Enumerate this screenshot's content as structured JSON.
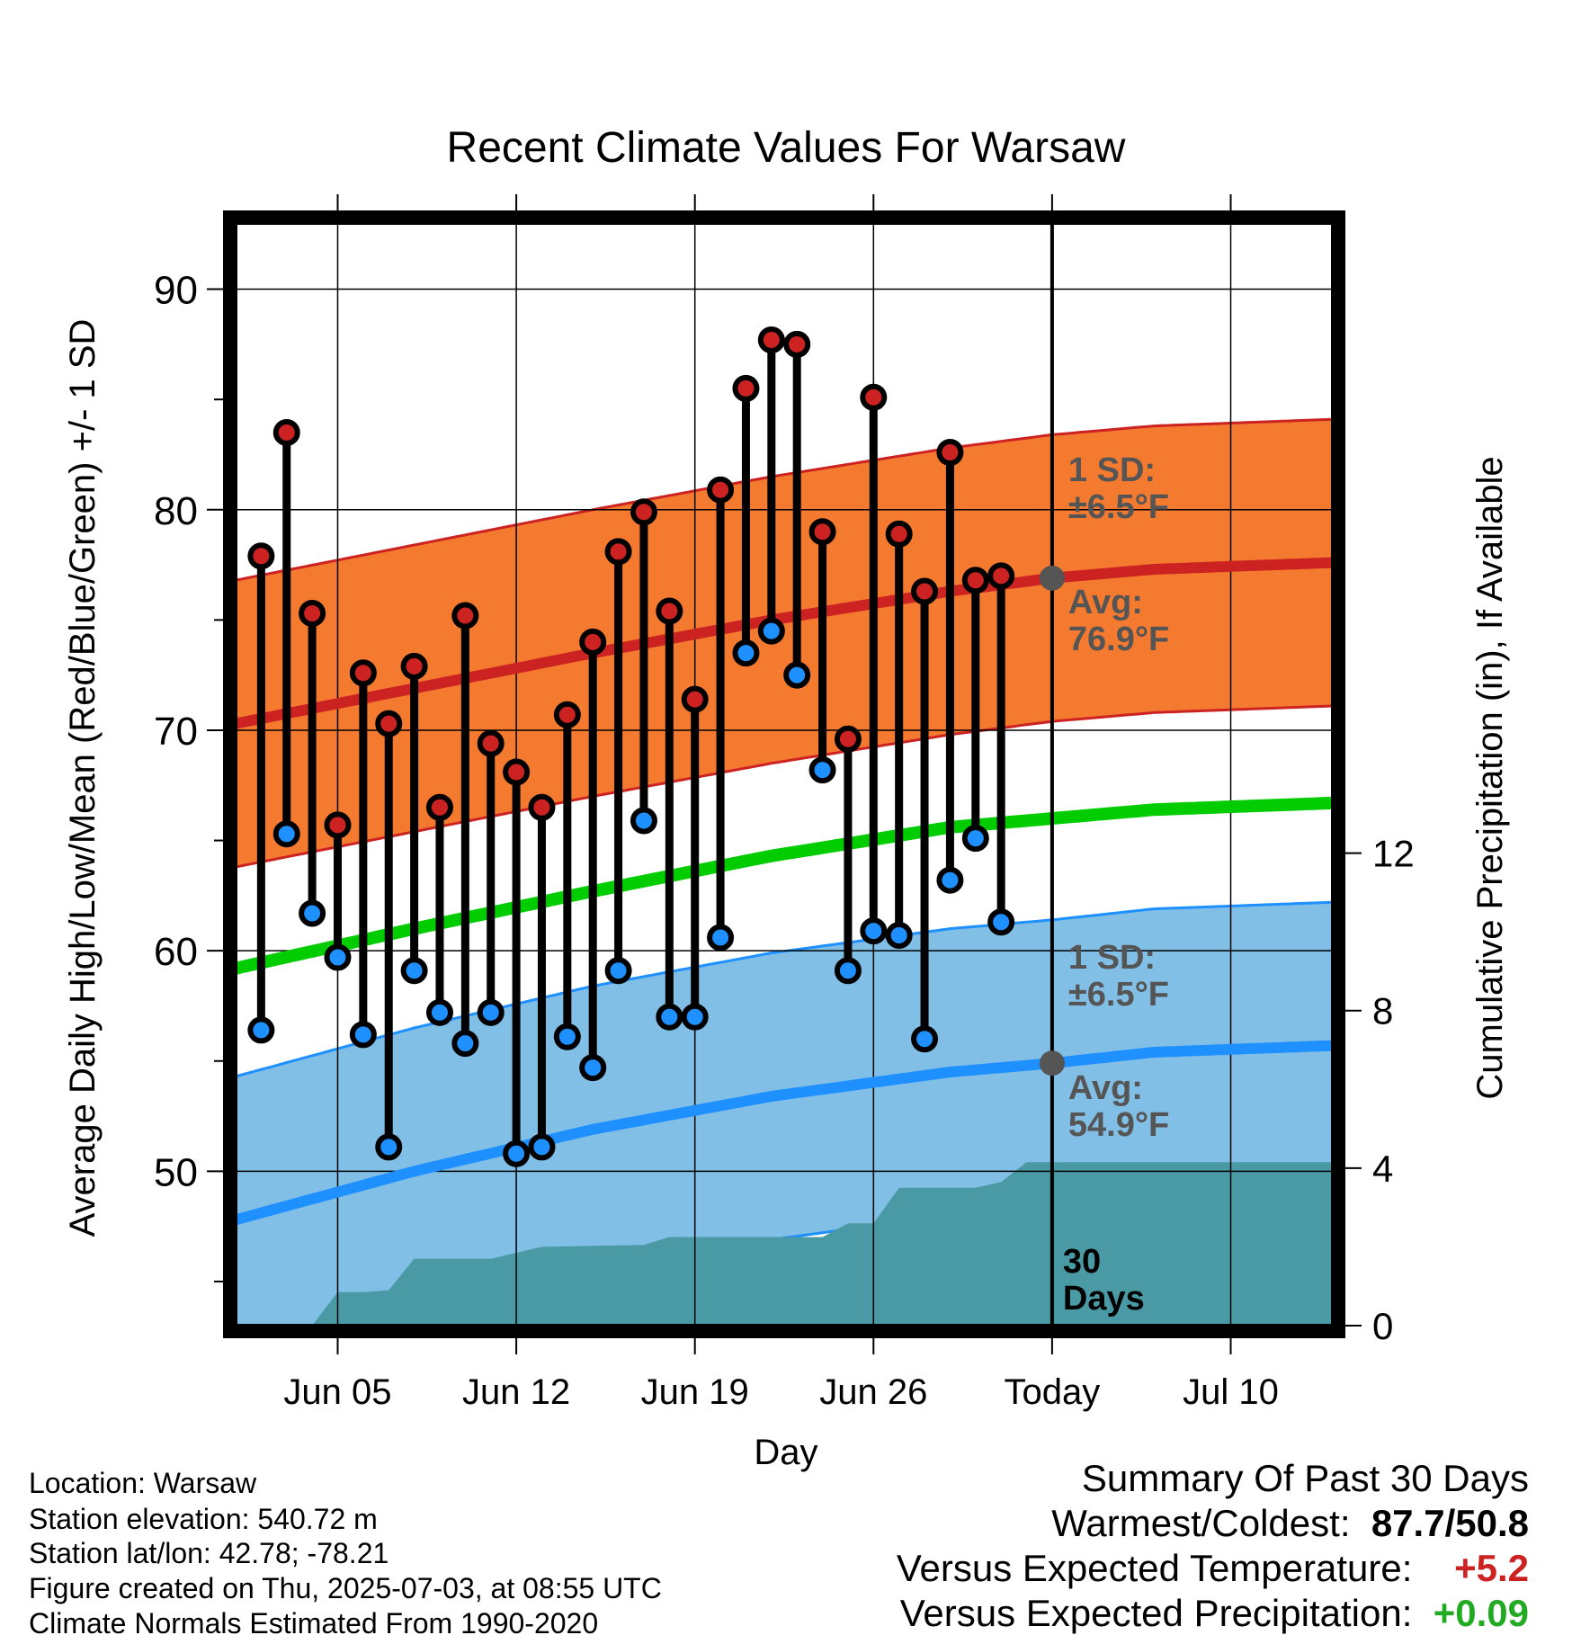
{
  "chart_data": {
    "type": "line",
    "title": "Recent Climate Values For Warsaw",
    "xlabel": "Day",
    "ylabel": "Average Daily High/Low/Mean (Red/Blue/Green) +/- 1 SD",
    "ylabel_right": "Cumulative Precipitation (in), If Available",
    "ylim": [
      43,
      93
    ],
    "ylim_right": [
      0,
      28
    ],
    "yticks": [
      50,
      60,
      70,
      80,
      90
    ],
    "yticks_right": [
      0,
      4,
      8,
      12
    ],
    "xlim": [
      "2025-06-01",
      "2025-07-14"
    ],
    "xticks": [
      {
        "date": "2025-06-05",
        "label": "Jun 05"
      },
      {
        "date": "2025-06-12",
        "label": "Jun 12"
      },
      {
        "date": "2025-06-19",
        "label": "Jun 19"
      },
      {
        "date": "2025-06-26",
        "label": "Jun 26"
      },
      {
        "date": "2025-07-03",
        "label": "Today"
      },
      {
        "date": "2025-07-10",
        "label": "Jul 10"
      }
    ],
    "grid": true,
    "today": "2025-07-03",
    "series": [
      {
        "key": "high",
        "color": "#cc2222",
        "values": [
          {
            "date": "2025-06-02",
            "y": 77.9
          },
          {
            "date": "2025-06-03",
            "y": 83.5
          },
          {
            "date": "2025-06-04",
            "y": 75.3
          },
          {
            "date": "2025-06-05",
            "y": 65.7
          },
          {
            "date": "2025-06-06",
            "y": 72.6
          },
          {
            "date": "2025-06-07",
            "y": 70.3
          },
          {
            "date": "2025-06-08",
            "y": 72.9
          },
          {
            "date": "2025-06-09",
            "y": 66.5
          },
          {
            "date": "2025-06-10",
            "y": 75.2
          },
          {
            "date": "2025-06-11",
            "y": 69.4
          },
          {
            "date": "2025-06-12",
            "y": 68.1
          },
          {
            "date": "2025-06-13",
            "y": 66.5
          },
          {
            "date": "2025-06-14",
            "y": 70.7
          },
          {
            "date": "2025-06-15",
            "y": 74.0
          },
          {
            "date": "2025-06-16",
            "y": 78.1
          },
          {
            "date": "2025-06-17",
            "y": 79.9
          },
          {
            "date": "2025-06-18",
            "y": 75.4
          },
          {
            "date": "2025-06-19",
            "y": 71.4
          },
          {
            "date": "2025-06-20",
            "y": 80.9
          },
          {
            "date": "2025-06-21",
            "y": 85.5
          },
          {
            "date": "2025-06-22",
            "y": 87.7
          },
          {
            "date": "2025-06-23",
            "y": 87.5
          },
          {
            "date": "2025-06-24",
            "y": 79.0
          },
          {
            "date": "2025-06-25",
            "y": 69.6
          },
          {
            "date": "2025-06-26",
            "y": 85.1
          },
          {
            "date": "2025-06-27",
            "y": 78.9
          },
          {
            "date": "2025-06-28",
            "y": 76.3
          },
          {
            "date": "2025-06-29",
            "y": 82.6
          },
          {
            "date": "2025-06-30",
            "y": 76.8
          },
          {
            "date": "2025-07-01",
            "y": 77.0
          }
        ]
      },
      {
        "key": "low",
        "color": "#1e90ff",
        "values": [
          {
            "date": "2025-06-02",
            "y": 56.4
          },
          {
            "date": "2025-06-03",
            "y": 65.3
          },
          {
            "date": "2025-06-04",
            "y": 61.7
          },
          {
            "date": "2025-06-05",
            "y": 59.7
          },
          {
            "date": "2025-06-06",
            "y": 56.2
          },
          {
            "date": "2025-06-07",
            "y": 51.1
          },
          {
            "date": "2025-06-08",
            "y": 59.1
          },
          {
            "date": "2025-06-09",
            "y": 57.2
          },
          {
            "date": "2025-06-10",
            "y": 55.8
          },
          {
            "date": "2025-06-11",
            "y": 57.2
          },
          {
            "date": "2025-06-12",
            "y": 50.8
          },
          {
            "date": "2025-06-13",
            "y": 51.1
          },
          {
            "date": "2025-06-14",
            "y": 56.1
          },
          {
            "date": "2025-06-15",
            "y": 54.7
          },
          {
            "date": "2025-06-16",
            "y": 59.1
          },
          {
            "date": "2025-06-17",
            "y": 65.9
          },
          {
            "date": "2025-06-18",
            "y": 57.0
          },
          {
            "date": "2025-06-19",
            "y": 57.0
          },
          {
            "date": "2025-06-20",
            "y": 60.6
          },
          {
            "date": "2025-06-21",
            "y": 73.5
          },
          {
            "date": "2025-06-22",
            "y": 74.5
          },
          {
            "date": "2025-06-23",
            "y": 72.5
          },
          {
            "date": "2025-06-24",
            "y": 68.2
          },
          {
            "date": "2025-06-25",
            "y": 59.1
          },
          {
            "date": "2025-06-26",
            "y": 60.9
          },
          {
            "date": "2025-06-27",
            "y": 60.7
          },
          {
            "date": "2025-06-28",
            "y": 56.0
          },
          {
            "date": "2025-06-29",
            "y": 63.2
          },
          {
            "date": "2025-06-30",
            "y": 65.1
          },
          {
            "date": "2025-07-01",
            "y": 61.3
          }
        ]
      }
    ],
    "normals": {
      "high_avg": [
        {
          "date": "2025-06-01",
          "y": 70.3
        },
        {
          "date": "2025-06-08",
          "y": 71.9
        },
        {
          "date": "2025-06-15",
          "y": 73.5
        },
        {
          "date": "2025-06-22",
          "y": 75.0
        },
        {
          "date": "2025-06-29",
          "y": 76.3
        },
        {
          "date": "2025-07-03",
          "y": 76.9
        },
        {
          "date": "2025-07-07",
          "y": 77.3
        },
        {
          "date": "2025-07-14",
          "y": 77.6
        }
      ],
      "high_sd": 6.5,
      "mean_avg": [
        {
          "date": "2025-06-01",
          "y": 59.2
        },
        {
          "date": "2025-06-08",
          "y": 61.0
        },
        {
          "date": "2025-06-15",
          "y": 62.7
        },
        {
          "date": "2025-06-22",
          "y": 64.3
        },
        {
          "date": "2025-06-29",
          "y": 65.6
        },
        {
          "date": "2025-07-03",
          "y": 66.0
        },
        {
          "date": "2025-07-07",
          "y": 66.4
        },
        {
          "date": "2025-07-14",
          "y": 66.7
        }
      ],
      "low_avg": [
        {
          "date": "2025-06-01",
          "y": 47.8
        },
        {
          "date": "2025-06-08",
          "y": 50.0
        },
        {
          "date": "2025-06-15",
          "y": 51.9
        },
        {
          "date": "2025-06-22",
          "y": 53.4
        },
        {
          "date": "2025-06-29",
          "y": 54.5
        },
        {
          "date": "2025-07-03",
          "y": 54.9
        },
        {
          "date": "2025-07-07",
          "y": 55.4
        },
        {
          "date": "2025-07-14",
          "y": 55.7
        }
      ],
      "low_sd": 6.5
    },
    "precip_cumulative": [
      {
        "date": "2025-06-01",
        "y": 0
      },
      {
        "date": "2025-06-04",
        "y": 0
      },
      {
        "date": "2025-06-05",
        "y": 0.85
      },
      {
        "date": "2025-06-06",
        "y": 0.85
      },
      {
        "date": "2025-06-07",
        "y": 0.9
      },
      {
        "date": "2025-06-08",
        "y": 1.7
      },
      {
        "date": "2025-06-11",
        "y": 1.7
      },
      {
        "date": "2025-06-12",
        "y": 1.85
      },
      {
        "date": "2025-06-13",
        "y": 2.0
      },
      {
        "date": "2025-06-17",
        "y": 2.05
      },
      {
        "date": "2025-06-18",
        "y": 2.25
      },
      {
        "date": "2025-06-24",
        "y": 2.25
      },
      {
        "date": "2025-06-25",
        "y": 2.6
      },
      {
        "date": "2025-06-26",
        "y": 2.6
      },
      {
        "date": "2025-06-27",
        "y": 3.5
      },
      {
        "date": "2025-06-30",
        "y": 3.5
      },
      {
        "date": "2025-07-01",
        "y": 3.65
      },
      {
        "date": "2025-07-02",
        "y": 4.15
      },
      {
        "date": "2025-07-14",
        "y": 4.15
      }
    ],
    "annotations": {
      "high_sd_line1": "1 SD:",
      "high_sd_line2": "±6.5°F",
      "high_avg_line1": "Avg:",
      "high_avg_line2": "76.9°F",
      "low_sd_line1": "1 SD:",
      "low_sd_line2": "±6.5°F",
      "low_avg_line1": "Avg:",
      "low_avg_line2": "54.9°F",
      "days_line1": "30",
      "days_line2": "Days"
    },
    "colors": {
      "high_band": "#f47a30",
      "high_line": "#cc2222",
      "low_band": "#82bfe6",
      "low_line": "#1e90ff",
      "mean_line": "#00cc00",
      "precip": "#4a9aa5",
      "today_marker": "#555555",
      "annotation_text": "#555555"
    }
  },
  "meta": {
    "location": "Location: Warsaw",
    "elevation": "Station elevation: 540.72 m",
    "latlon": "Station lat/lon: 42.78; -78.21",
    "created": "Figure created on Thu, 2025-07-03, at 08:55 UTC",
    "normals": "Climate Normals Estimated From 1990-2020"
  },
  "summary": {
    "title": "Summary Of Past 30 Days",
    "warmest_label": "Warmest/Coldest:",
    "warmest_value": "87.7",
    "coldest_value": "50.8",
    "temp_label": "Versus Expected Temperature:",
    "temp_value": "+5.2",
    "temp_color": "#cc2222",
    "precip_label": "Versus Expected Precipitation:",
    "precip_value": "+0.09",
    "precip_color": "#22aa22"
  }
}
